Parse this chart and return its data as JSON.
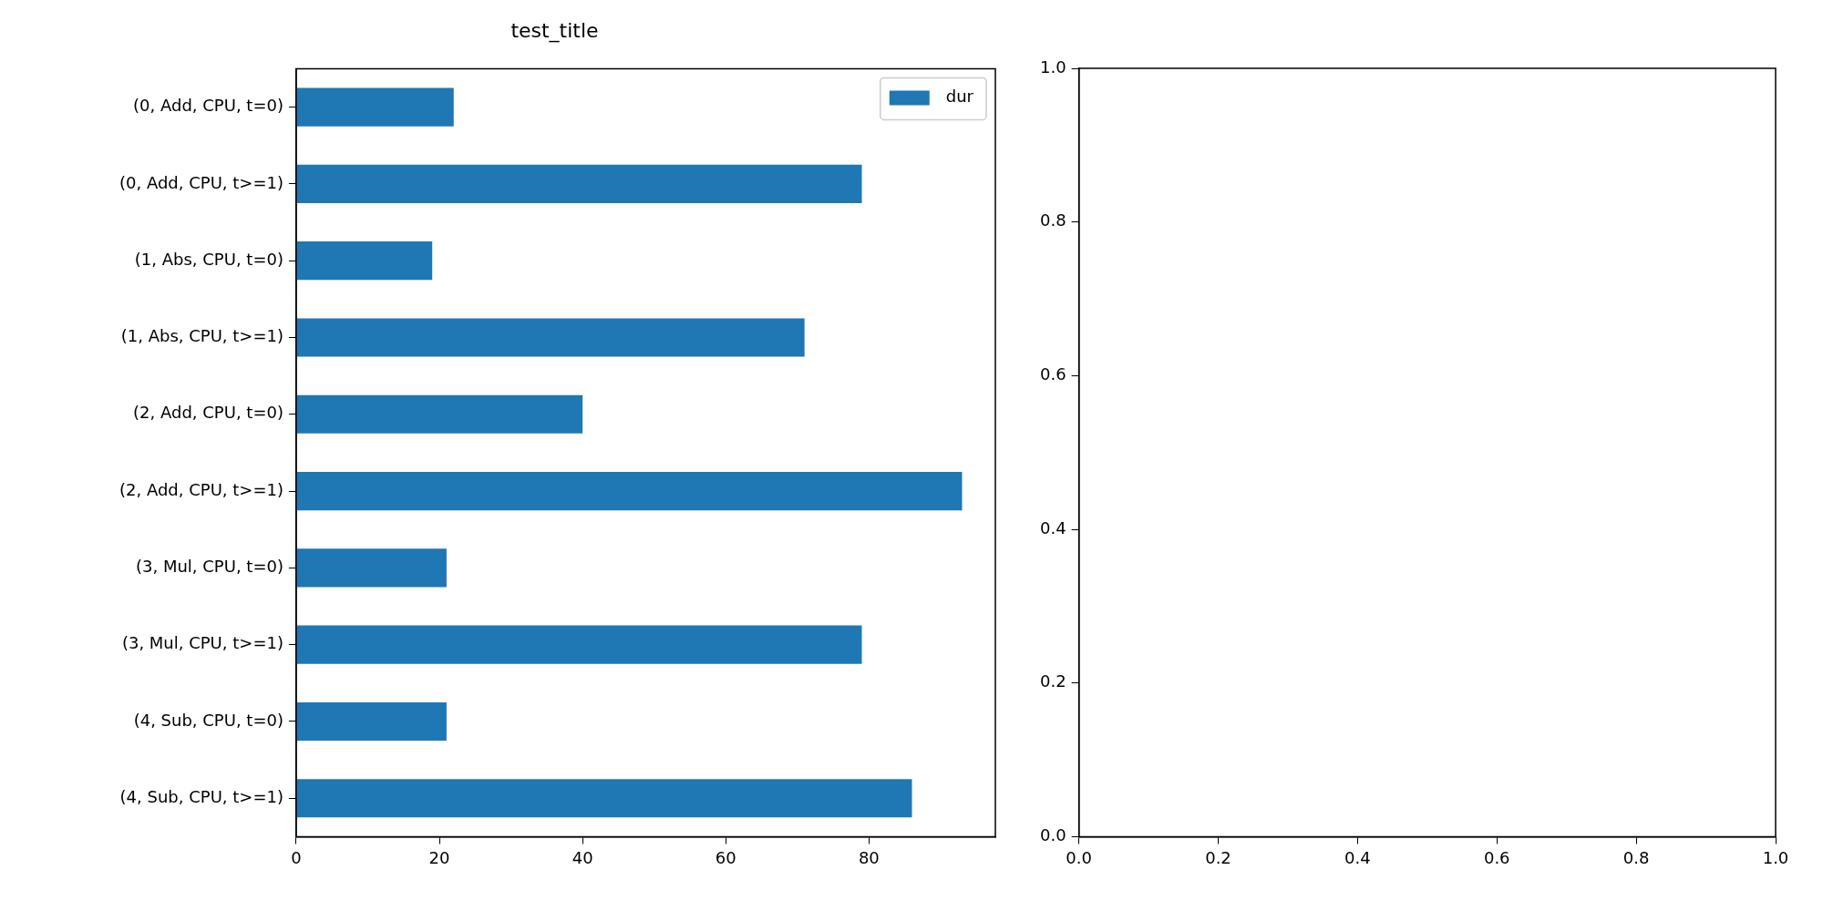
{
  "chart_data": [
    {
      "type": "bar",
      "title": "test_title",
      "orientation": "horizontal",
      "categories": [
        "(0, Add, CPU, t=0)",
        "(0, Add, CPU, t>=1)",
        "(1, Abs, CPU, t=0)",
        "(1, Abs, CPU, t>=1)",
        "(2, Add, CPU, t=0)",
        "(2, Add, CPU, t>=1)",
        "(3, Mul, CPU, t=0)",
        "(3, Mul, CPU, t>=1)",
        "(4, Sub, CPU, t=0)",
        "(4, Sub, CPU, t>=1)"
      ],
      "series": [
        {
          "name": "dur",
          "color": "#1f77b4",
          "values": [
            22,
            79,
            19,
            71,
            40,
            93,
            21,
            79,
            21,
            86
          ]
        }
      ],
      "xlim": [
        0,
        97.65
      ],
      "xticks": [
        0,
        20,
        40,
        60,
        80
      ],
      "legend": "top right",
      "grid": false
    },
    {
      "type": "scatter",
      "xlim": [
        0,
        1
      ],
      "xticks": [
        {
          "value": 0,
          "label": "0.0"
        },
        {
          "value": 0.2,
          "label": "0.2"
        },
        {
          "value": 0.4,
          "label": "0.4"
        },
        {
          "value": 0.6,
          "label": "0.6"
        },
        {
          "value": 0.8,
          "label": "0.8"
        },
        {
          "value": 1,
          "label": "1.0"
        }
      ],
      "ylim": [
        0,
        1
      ],
      "yticks": [
        {
          "value": 0,
          "label": "0.0"
        },
        {
          "value": 0.2,
          "label": "0.2"
        },
        {
          "value": 0.4,
          "label": "0.4"
        },
        {
          "value": 0.6,
          "label": "0.6"
        },
        {
          "value": 0.8,
          "label": "0.8"
        },
        {
          "value": 1,
          "label": "1.0"
        }
      ],
      "grid": false
    }
  ]
}
